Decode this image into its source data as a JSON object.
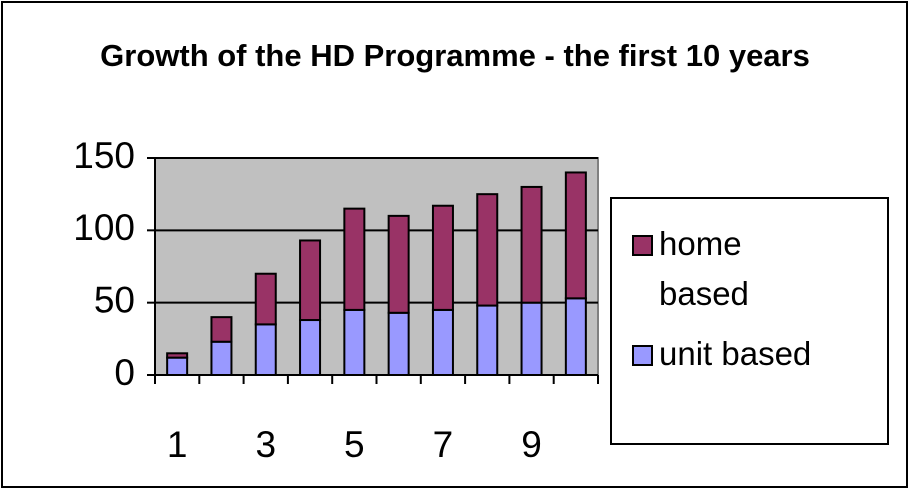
{
  "chart_data": {
    "type": "stacked_bar",
    "title": "Growth of the HD Programme - the first 10 years",
    "categories": [
      "1",
      null,
      "3",
      null,
      "5",
      null,
      "7",
      null,
      "9",
      null
    ],
    "series": [
      {
        "name": "unit based",
        "color": "#9999ff",
        "values": [
          12,
          23,
          35,
          38,
          45,
          43,
          45,
          48,
          50,
          53
        ]
      },
      {
        "name": "home based",
        "color": "#993366",
        "values": [
          3,
          17,
          35,
          55,
          70,
          67,
          72,
          77,
          80,
          87
        ]
      }
    ],
    "ylim": [
      0,
      150
    ],
    "yticks": [
      0,
      50,
      100,
      150
    ],
    "grid": true,
    "legend": "right"
  }
}
